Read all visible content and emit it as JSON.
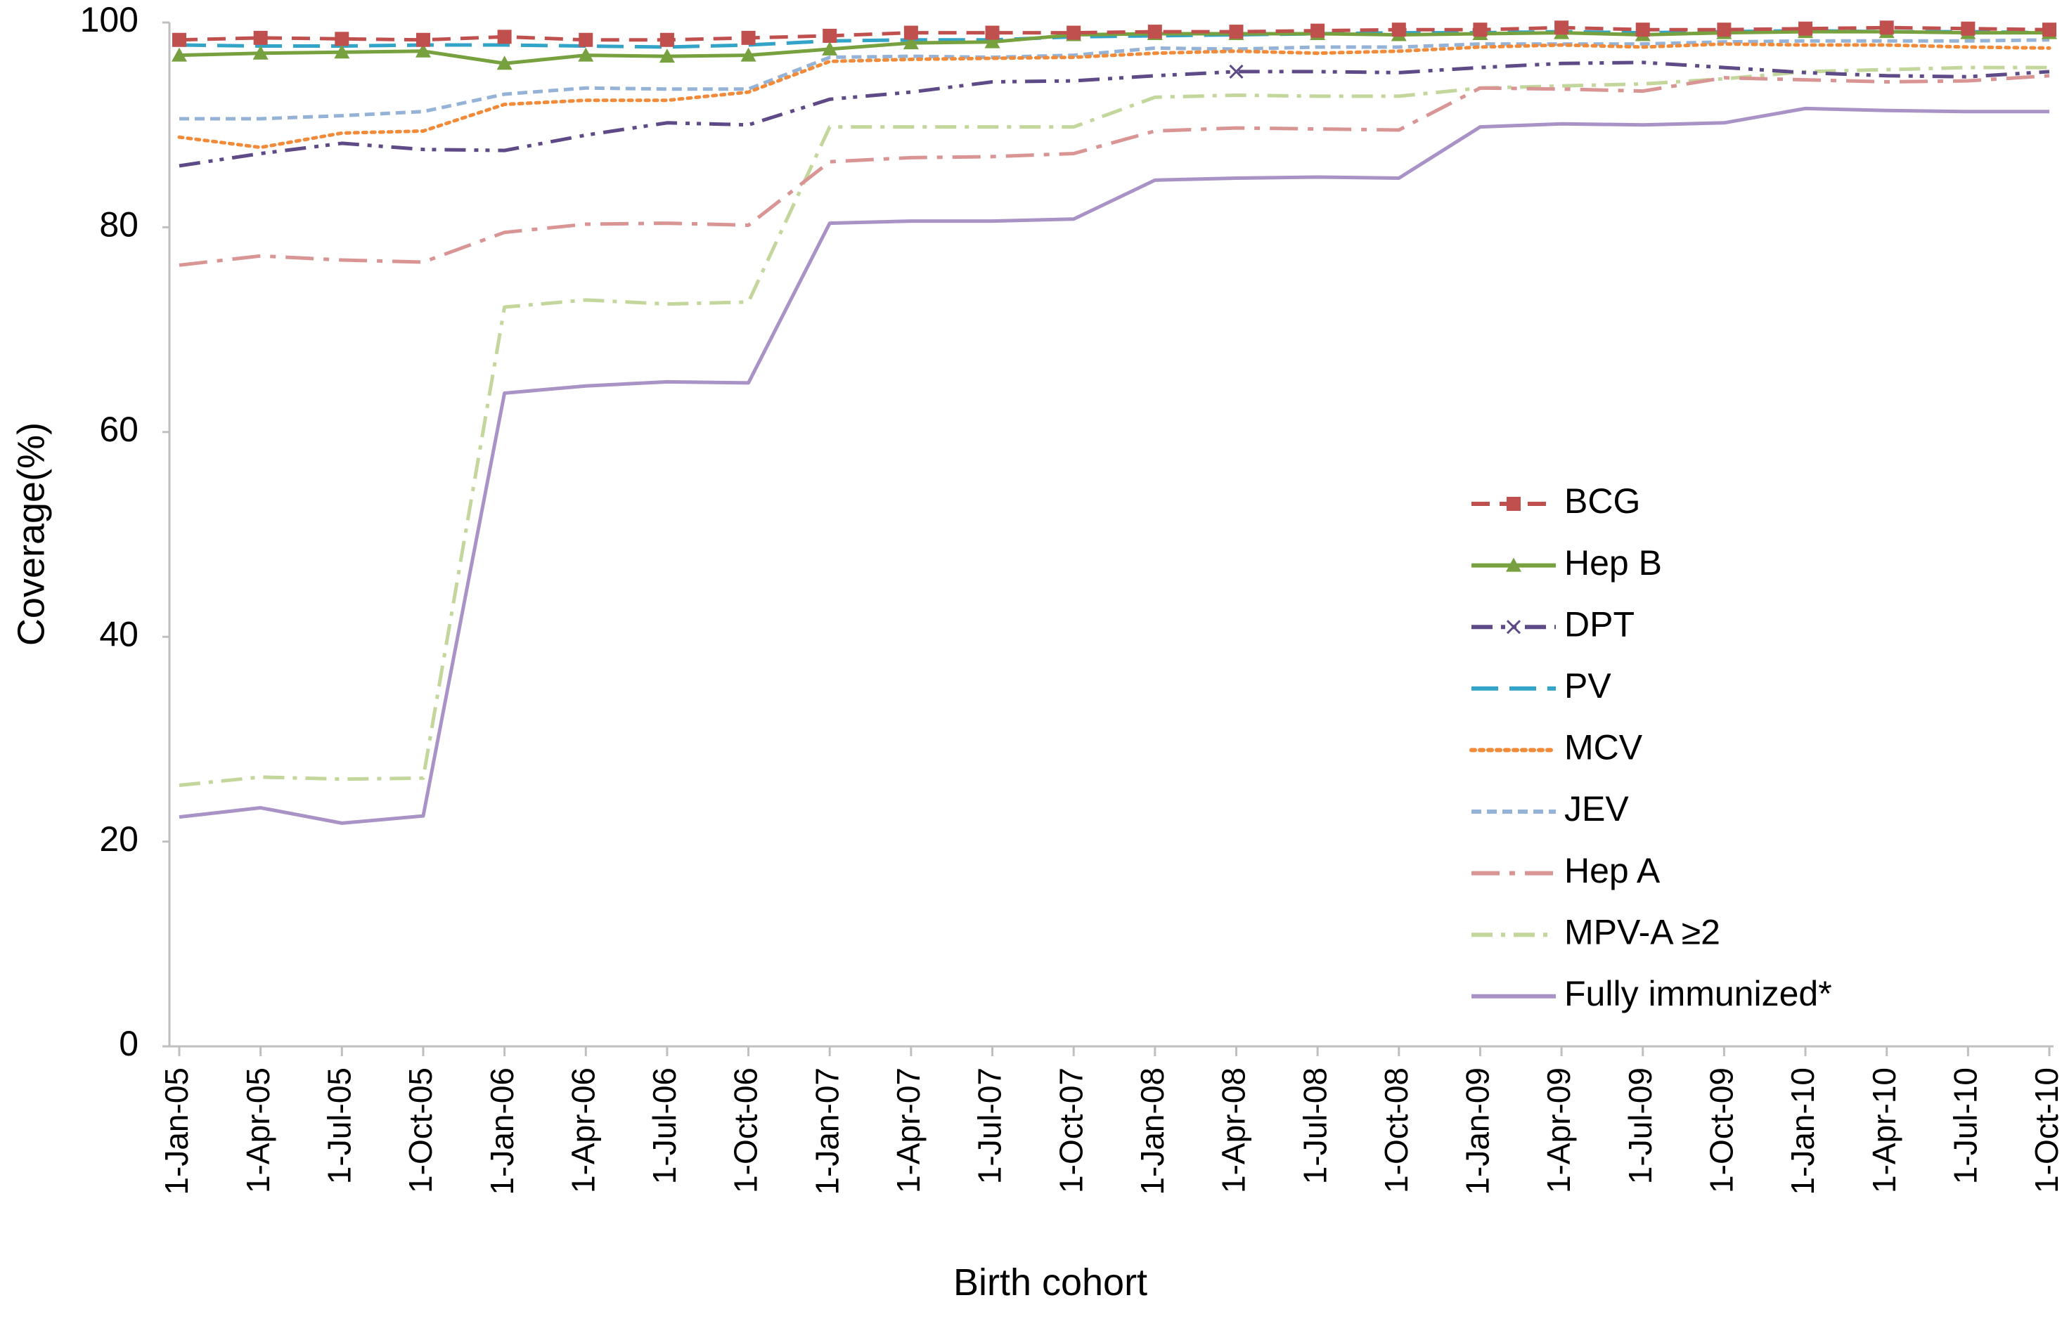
{
  "chart_data": {
    "type": "line",
    "title": "",
    "xlabel": "Birth cohort",
    "ylabel": "Coverage(%)",
    "ylim": [
      0,
      100
    ],
    "yticks": [
      0,
      20,
      40,
      60,
      80,
      100
    ],
    "grid": false,
    "legend_position": "center-right",
    "categories": [
      "1-Jan-05",
      "1-Apr-05",
      "1-Jul-05",
      "1-Oct-05",
      "1-Jan-06",
      "1-Apr-06",
      "1-Jul-06",
      "1-Oct-06",
      "1-Jan-07",
      "1-Apr-07",
      "1-Jul-07",
      "1-Oct-07",
      "1-Jan-08",
      "1-Apr-08",
      "1-Jul-08",
      "1-Oct-08",
      "1-Jan-09",
      "1-Apr-09",
      "1-Jul-09",
      "1-Oct-09",
      "1-Jan-10",
      "1-Apr-10",
      "1-Jul-10",
      "1-Oct-10"
    ],
    "series": [
      {
        "name": "BCG",
        "color": "#C0504D",
        "dash": "dash",
        "marker": "square",
        "values": [
          98.3,
          98.5,
          98.4,
          98.3,
          98.6,
          98.3,
          98.3,
          98.5,
          98.7,
          99.0,
          99.0,
          99.0,
          99.1,
          99.1,
          99.2,
          99.3,
          99.3,
          99.5,
          99.3,
          99.3,
          99.4,
          99.5,
          99.4,
          99.3
        ]
      },
      {
        "name": "Hep B",
        "color": "#77A03F",
        "dash": "solid",
        "marker": "triangle",
        "values": [
          96.8,
          97.0,
          97.1,
          97.2,
          96.0,
          96.8,
          96.7,
          96.8,
          97.4,
          98.0,
          98.1,
          98.8,
          98.9,
          98.9,
          98.9,
          98.8,
          98.9,
          99.0,
          98.8,
          99.0,
          99.1,
          99.1,
          99.0,
          99.0
        ]
      },
      {
        "name": "DPT",
        "color": "#5E4A86",
        "dash": "dashdotdot",
        "marker": "x",
        "values": [
          86.0,
          87.2,
          88.2,
          87.6,
          87.5,
          89.0,
          90.2,
          90.0,
          92.5,
          93.2,
          94.2,
          94.3,
          94.8,
          95.2,
          95.2,
          95.1,
          95.6,
          96.0,
          96.1,
          95.6,
          95.1,
          94.8,
          94.7,
          95.2
        ]
      },
      {
        "name": "PV",
        "color": "#31A4C7",
        "dash": "longdash",
        "marker": "none",
        "values": [
          97.8,
          97.7,
          97.7,
          97.8,
          97.8,
          97.7,
          97.6,
          97.8,
          98.2,
          98.3,
          98.3,
          98.6,
          98.7,
          98.8,
          98.9,
          99.0,
          99.0,
          99.1,
          99.0,
          99.1,
          99.2,
          99.1,
          99.1,
          99.0
        ]
      },
      {
        "name": "MCV",
        "color": "#F18B3A",
        "dash": "dot",
        "marker": "none",
        "values": [
          88.8,
          87.8,
          89.2,
          89.4,
          92.0,
          92.4,
          92.4,
          93.2,
          96.2,
          96.4,
          96.5,
          96.6,
          97.0,
          97.2,
          97.0,
          97.2,
          97.6,
          97.8,
          97.6,
          97.9,
          97.8,
          97.8,
          97.6,
          97.5
        ]
      },
      {
        "name": "JEV",
        "color": "#95B3D7",
        "dash": "shortdash",
        "marker": "none",
        "values": [
          90.6,
          90.6,
          90.9,
          91.3,
          93.0,
          93.6,
          93.5,
          93.5,
          96.6,
          96.7,
          96.6,
          96.8,
          97.5,
          97.4,
          97.6,
          97.6,
          97.9,
          97.9,
          97.9,
          98.1,
          98.2,
          98.2,
          98.2,
          98.3
        ]
      },
      {
        "name": "Hep A",
        "color": "#D99594",
        "dash": "longdashdot",
        "marker": "none",
        "values": [
          76.3,
          77.2,
          76.8,
          76.6,
          79.5,
          80.3,
          80.4,
          80.2,
          86.4,
          86.8,
          86.9,
          87.2,
          89.4,
          89.7,
          89.6,
          89.5,
          93.6,
          93.5,
          93.3,
          94.6,
          94.4,
          94.2,
          94.3,
          94.8
        ]
      },
      {
        "name": "MPV-A ≥2",
        "color": "#C3D69B",
        "dash": "dashdot",
        "marker": "none",
        "values": [
          25.5,
          26.3,
          26.1,
          26.2,
          72.2,
          72.9,
          72.5,
          72.7,
          89.8,
          89.8,
          89.8,
          89.8,
          92.7,
          92.9,
          92.8,
          92.8,
          93.6,
          93.8,
          94.0,
          94.5,
          95.2,
          95.4,
          95.6,
          95.6
        ]
      },
      {
        "name": "Fully immunized*",
        "color": "#A992C6",
        "dash": "solid",
        "marker": "none",
        "values": [
          22.4,
          23.3,
          21.8,
          22.5,
          63.8,
          64.5,
          64.9,
          64.8,
          80.4,
          80.6,
          80.6,
          80.8,
          84.6,
          84.8,
          84.9,
          84.8,
          89.8,
          90.1,
          90.0,
          90.2,
          91.6,
          91.4,
          91.3,
          91.3
        ]
      }
    ]
  }
}
